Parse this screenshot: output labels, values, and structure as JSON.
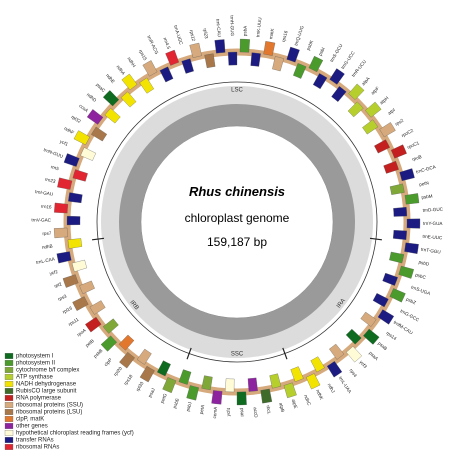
{
  "title": "Rhus chinensis",
  "subtitle": "chloroplast genome",
  "size": "159,187 bp",
  "regions": [
    "LSC",
    "IRA",
    "SSC",
    "IRB"
  ],
  "legend": [
    {
      "label": "photosystem I",
      "color": "#0e6b1f"
    },
    {
      "label": "photosystem II",
      "color": "#4a9a2c"
    },
    {
      "label": "cytochrome b/f complex",
      "color": "#7fa838"
    },
    {
      "label": "ATP synthase",
      "color": "#b7cf2d"
    },
    {
      "label": "NADH dehydrogenase",
      "color": "#f2e400"
    },
    {
      "label": "RubisCO large subunit",
      "color": "#3e6b2a"
    },
    {
      "label": "RNA polymerase",
      "color": "#c3201f"
    },
    {
      "label": "ribosomal proteins (SSU)",
      "color": "#d6aa7c"
    },
    {
      "label": "ribosomal proteins (LSU)",
      "color": "#a8784a"
    },
    {
      "label": "clpP, matK",
      "color": "#e2782e"
    },
    {
      "label": "other genes",
      "color": "#8e23a0"
    },
    {
      "label": "hypothetical chloroplast reading frames (ycf)",
      "color": "#fffbd6"
    },
    {
      "label": "transfer RNAs",
      "color": "#1b1b82"
    },
    {
      "label": "ribosomal RNAs",
      "color": "#e12632"
    }
  ],
  "genes": [
    {
      "label": "psbA",
      "color": "#4a9a2c"
    },
    {
      "label": "trnK-UUU",
      "color": "#1b1b82"
    },
    {
      "label": "matK",
      "color": "#e2782e"
    },
    {
      "label": "rps16",
      "color": "#d6aa7c"
    },
    {
      "label": "trnQ-UUG",
      "color": "#1b1b82"
    },
    {
      "label": "psbK",
      "color": "#4a9a2c"
    },
    {
      "label": "psbI",
      "color": "#4a9a2c"
    },
    {
      "label": "trnS-GCU",
      "color": "#1b1b82"
    },
    {
      "label": "trnG-UCC",
      "color": "#1b1b82"
    },
    {
      "label": "trnR-UCU",
      "color": "#1b1b82"
    },
    {
      "label": "atpA",
      "color": "#b7cf2d"
    },
    {
      "label": "atpF",
      "color": "#b7cf2d"
    },
    {
      "label": "atpH",
      "color": "#b7cf2d"
    },
    {
      "label": "atpI",
      "color": "#b7cf2d"
    },
    {
      "label": "rps2",
      "color": "#d6aa7c"
    },
    {
      "label": "rpoC2",
      "color": "#c3201f"
    },
    {
      "label": "rpoC1",
      "color": "#c3201f"
    },
    {
      "label": "rpoB",
      "color": "#c3201f"
    },
    {
      "label": "trnC-GCA",
      "color": "#1b1b82"
    },
    {
      "label": "petN",
      "color": "#7fa838"
    },
    {
      "label": "psbM",
      "color": "#4a9a2c"
    },
    {
      "label": "trnD-GUC",
      "color": "#1b1b82"
    },
    {
      "label": "trnY-GUA",
      "color": "#1b1b82"
    },
    {
      "label": "trnE-UUC",
      "color": "#1b1b82"
    },
    {
      "label": "trnT-GGU",
      "color": "#1b1b82"
    },
    {
      "label": "psbD",
      "color": "#4a9a2c"
    },
    {
      "label": "psbC",
      "color": "#4a9a2c"
    },
    {
      "label": "trnS-UGA",
      "color": "#1b1b82"
    },
    {
      "label": "psbZ",
      "color": "#4a9a2c"
    },
    {
      "label": "trnG-GCC",
      "color": "#1b1b82"
    },
    {
      "label": "trnfM-CAU",
      "color": "#1b1b82"
    },
    {
      "label": "rps14",
      "color": "#d6aa7c"
    },
    {
      "label": "psaB",
      "color": "#0e6b1f"
    },
    {
      "label": "psaA",
      "color": "#0e6b1f"
    },
    {
      "label": "ycf3",
      "color": "#fffbd6"
    },
    {
      "label": "rps4",
      "color": "#d6aa7c"
    },
    {
      "label": "trnL-UAA",
      "color": "#1b1b82"
    },
    {
      "label": "ndhJ",
      "color": "#f2e400"
    },
    {
      "label": "ndhK",
      "color": "#f2e400"
    },
    {
      "label": "ndhC",
      "color": "#f2e400"
    },
    {
      "label": "atpE",
      "color": "#b7cf2d"
    },
    {
      "label": "atpB",
      "color": "#b7cf2d"
    },
    {
      "label": "rbcL",
      "color": "#3e6b2a"
    },
    {
      "label": "accD",
      "color": "#8e23a0"
    },
    {
      "label": "psaI",
      "color": "#0e6b1f"
    },
    {
      "label": "ycf4",
      "color": "#fffbd6"
    },
    {
      "label": "cemA",
      "color": "#8e23a0"
    },
    {
      "label": "petA",
      "color": "#7fa838"
    },
    {
      "label": "psbJ",
      "color": "#4a9a2c"
    },
    {
      "label": "psbE",
      "color": "#4a9a2c"
    },
    {
      "label": "petG",
      "color": "#7fa838"
    },
    {
      "label": "psaJ",
      "color": "#0e6b1f"
    },
    {
      "label": "rpl33",
      "color": "#a8784a"
    },
    {
      "label": "rps18",
      "color": "#d6aa7c"
    },
    {
      "label": "rpl20",
      "color": "#a8784a"
    },
    {
      "label": "clpP",
      "color": "#e2782e"
    },
    {
      "label": "psbB",
      "color": "#4a9a2c"
    },
    {
      "label": "petB",
      "color": "#7fa838"
    },
    {
      "label": "rpoA",
      "color": "#c3201f"
    },
    {
      "label": "rps11",
      "color": "#d6aa7c"
    },
    {
      "label": "rpl16",
      "color": "#a8784a"
    },
    {
      "label": "rps3",
      "color": "#d6aa7c"
    },
    {
      "label": "rpl2",
      "color": "#a8784a"
    },
    {
      "label": "ycf2",
      "color": "#fffbd6"
    },
    {
      "label": "trnL-CAA",
      "color": "#1b1b82"
    },
    {
      "label": "ndhB",
      "color": "#f2e400"
    },
    {
      "label": "rps7",
      "color": "#d6aa7c"
    },
    {
      "label": "trnV-GAC",
      "color": "#1b1b82"
    },
    {
      "label": "rrn16",
      "color": "#e12632"
    },
    {
      "label": "trnI-GAU",
      "color": "#1b1b82"
    },
    {
      "label": "rrn23",
      "color": "#e12632"
    },
    {
      "label": "rrn5",
      "color": "#e12632"
    },
    {
      "label": "trnN-GUU",
      "color": "#1b1b82"
    },
    {
      "label": "ycf1",
      "color": "#fffbd6"
    },
    {
      "label": "ndhF",
      "color": "#f2e400"
    },
    {
      "label": "rpl32",
      "color": "#a8784a"
    },
    {
      "label": "ccsA",
      "color": "#8e23a0"
    },
    {
      "label": "ndhD",
      "color": "#f2e400"
    },
    {
      "label": "psaC",
      "color": "#0e6b1f"
    },
    {
      "label": "ndhE",
      "color": "#f2e400"
    },
    {
      "label": "ndhA",
      "color": "#f2e400"
    },
    {
      "label": "ndhH",
      "color": "#f2e400"
    },
    {
      "label": "rps15",
      "color": "#d6aa7c"
    },
    {
      "label": "trnR-ACG",
      "color": "#1b1b82"
    },
    {
      "label": "rrn4.5",
      "color": "#e12632"
    },
    {
      "label": "trnA-UGC",
      "color": "#1b1b82"
    },
    {
      "label": "rps12",
      "color": "#d6aa7c"
    },
    {
      "label": "rpl23",
      "color": "#a8784a"
    },
    {
      "label": "trnI-CAU",
      "color": "#1b1b82"
    },
    {
      "label": "trnH-GUG",
      "color": "#1b1b82"
    }
  ]
}
